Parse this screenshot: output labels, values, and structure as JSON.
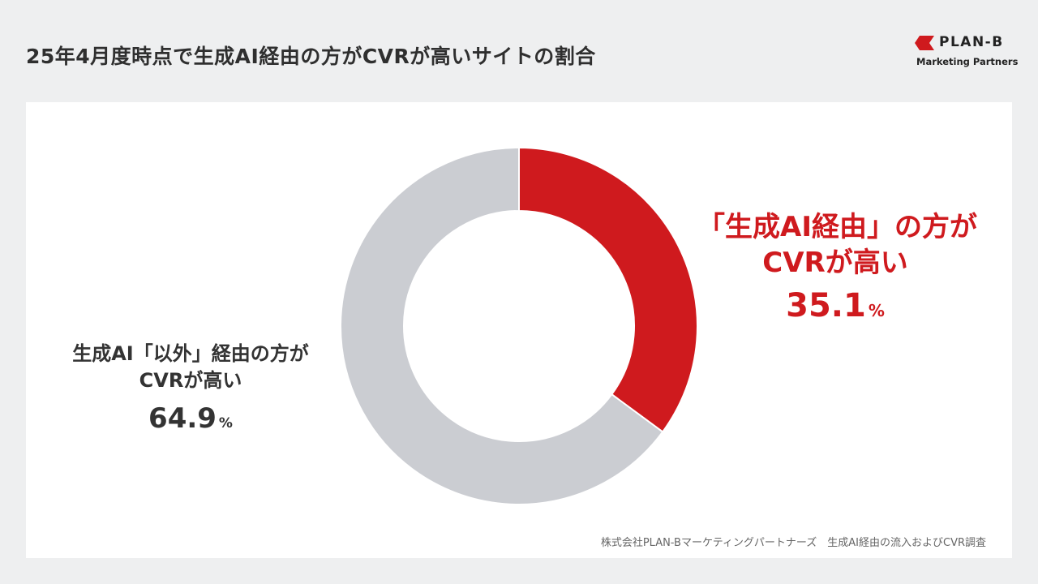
{
  "header": {
    "title": "25年4月度時点で生成AI経由の方がCVRが高いサイトの割合"
  },
  "logo": {
    "name": "PLAN-B",
    "subtitle": "Marketing Partners",
    "icon": "plan-b-logo-mark",
    "color": "#cf1a1e"
  },
  "chart_data": {
    "type": "pie",
    "donut": true,
    "categories": [
      "「生成AI経由」の方がCVRが高い",
      "生成AI「以外」経由の方がCVRが高い"
    ],
    "values": [
      35.1,
      64.9
    ],
    "unit": "%",
    "colors": [
      "#cf1a1e",
      "#cbcdd2"
    ],
    "labels": [
      {
        "lines": [
          "「生成AI経由」の方が",
          "CVRが高い"
        ],
        "value": "35.1",
        "unit": "%",
        "color": "#cf1a1e"
      },
      {
        "lines": [
          "生成AI「以外」経由の方が",
          "CVRが高い"
        ],
        "value": "64.9",
        "unit": "%",
        "color": "#333333"
      }
    ],
    "title": "",
    "legend": "none"
  },
  "footer": {
    "source": "株式会社PLAN-Bマーケティングパートナーズ　生成AI経由の流入およびCVR調査"
  }
}
